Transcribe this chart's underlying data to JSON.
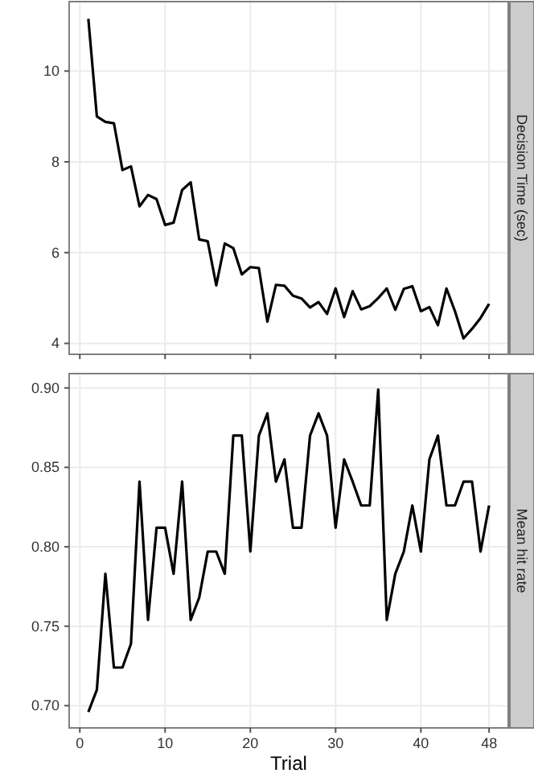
{
  "chart_data": [
    {
      "type": "line",
      "ylabel": "Decision Time (sec)",
      "x": [
        1,
        2,
        3,
        4,
        5,
        6,
        7,
        8,
        9,
        10,
        11,
        12,
        13,
        14,
        15,
        16,
        17,
        18,
        19,
        20,
        21,
        22,
        23,
        24,
        25,
        26,
        27,
        28,
        29,
        30,
        31,
        32,
        33,
        34,
        35,
        36,
        37,
        38,
        39,
        40,
        41,
        42,
        43,
        44,
        45,
        46,
        47,
        48
      ],
      "series": [
        {
          "color": "#000000",
          "values": [
            11.15,
            9.0,
            8.88,
            8.85,
            7.82,
            7.9,
            7.02,
            7.27,
            7.18,
            6.61,
            6.66,
            7.38,
            7.55,
            6.29,
            6.25,
            5.28,
            6.2,
            6.1,
            5.52,
            5.68,
            5.66,
            4.48,
            5.29,
            5.27,
            5.05,
            4.99,
            4.79,
            4.91,
            4.65,
            5.21,
            4.58,
            5.15,
            4.75,
            4.82,
            5.0,
            5.21,
            4.74,
            5.2,
            5.26,
            4.71,
            4.8,
            4.4,
            5.21,
            4.71,
            4.11,
            4.32,
            4.56,
            4.87
          ]
        }
      ],
      "xlim": [
        -1.25,
        50.25
      ],
      "xticks": [
        0,
        10,
        20,
        30,
        40,
        48
      ],
      "ylim": [
        3.76,
        11.53
      ],
      "yticks": [
        4,
        6,
        8,
        10
      ],
      "grid": true,
      "tick_labels": "y",
      "line_style": "solid"
    },
    {
      "type": "line",
      "ylabel": "Mean hit rate",
      "xlabel": "Trial",
      "x": [
        1,
        2,
        3,
        4,
        5,
        6,
        7,
        8,
        9,
        10,
        11,
        12,
        13,
        14,
        15,
        16,
        17,
        18,
        19,
        20,
        21,
        22,
        23,
        24,
        25,
        26,
        27,
        28,
        29,
        30,
        31,
        32,
        33,
        34,
        35,
        36,
        37,
        38,
        39,
        40,
        41,
        42,
        43,
        44,
        45,
        46,
        47,
        48
      ],
      "series": [
        {
          "color": "#000000",
          "values": [
            0.696,
            0.71,
            0.783,
            0.724,
            0.724,
            0.739,
            0.841,
            0.754,
            0.812,
            0.812,
            0.783,
            0.841,
            0.754,
            0.768,
            0.797,
            0.797,
            0.783,
            0.87,
            0.87,
            0.797,
            0.87,
            0.884,
            0.841,
            0.855,
            0.812,
            0.812,
            0.87,
            0.884,
            0.87,
            0.812,
            0.855,
            0.841,
            0.826,
            0.826,
            0.899,
            0.754,
            0.783,
            0.797,
            0.826,
            0.797,
            0.855,
            0.87,
            0.826,
            0.826,
            0.841,
            0.841,
            0.797,
            0.826
          ]
        }
      ],
      "xlim": [
        -1.25,
        50.25
      ],
      "xticks": [
        0,
        10,
        20,
        30,
        40,
        48
      ],
      "ylim": [
        0.686,
        0.909
      ],
      "yticks": [
        {
          "value": 0.7,
          "label": "0.70"
        },
        {
          "value": 0.75,
          "label": "0.75"
        },
        {
          "value": 0.8,
          "label": "0.80"
        },
        {
          "value": 0.85,
          "label": "0.85"
        },
        {
          "value": 0.9,
          "label": "0.90"
        }
      ],
      "grid": true,
      "line_style": "solid"
    }
  ]
}
